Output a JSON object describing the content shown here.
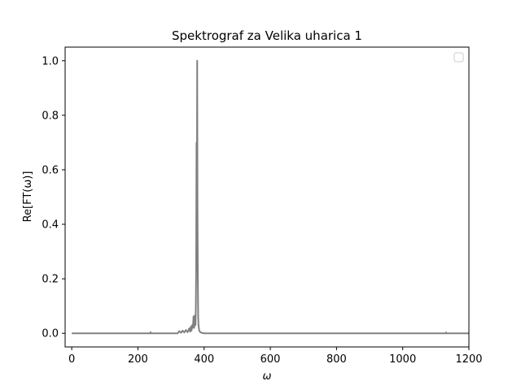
{
  "chart_data": {
    "type": "line",
    "title": "Spektrograf za Velika uharica 1",
    "xlabel": "ω",
    "ylabel": "Re[FT(ω)]",
    "xlim": [
      -20,
      1200
    ],
    "ylim": [
      -0.05,
      1.05
    ],
    "x_ticks": [
      0,
      200,
      400,
      600,
      800,
      1000,
      1200
    ],
    "y_ticks": [
      0.0,
      0.2,
      0.4,
      0.6,
      0.8,
      1.0
    ],
    "x_tick_labels": [
      "0",
      "200",
      "400",
      "600",
      "800",
      "1000",
      "1200"
    ],
    "y_tick_labels": [
      "0.0",
      "0.2",
      "0.4",
      "0.6",
      "0.8",
      "1.0"
    ],
    "grid": false,
    "legend": {
      "placement": "top-right",
      "entries": []
    },
    "series": [
      {
        "color": "#808080",
        "x": [
          0,
          100,
          200,
          237,
          238,
          239,
          300,
          320,
          325,
          330,
          335,
          340,
          345,
          350,
          355,
          358,
          360,
          362,
          364,
          366,
          368,
          370,
          372,
          374,
          375,
          376,
          377,
          378,
          379,
          380,
          381,
          382,
          383,
          384,
          385,
          386,
          388,
          390,
          395,
          400,
          500,
          600,
          700,
          800,
          900,
          1000,
          1100,
          1130,
          1131,
          1132,
          1200
        ],
        "y": [
          0,
          0,
          0,
          0,
          0.004,
          0,
          0,
          0,
          0.008,
          0.002,
          0.01,
          0.003,
          0.012,
          0.004,
          0.018,
          0.006,
          0.025,
          0.01,
          0.03,
          0.02,
          0.062,
          0.02,
          0.065,
          0.03,
          0.1,
          0.25,
          0.7,
          0.4,
          1.0,
          0.45,
          0.2,
          0.06,
          0.03,
          0.02,
          0.012,
          0.008,
          0.005,
          0.003,
          0.001,
          0,
          0,
          0,
          0,
          0,
          0,
          0,
          0,
          0,
          0.003,
          0,
          0
        ]
      }
    ]
  }
}
